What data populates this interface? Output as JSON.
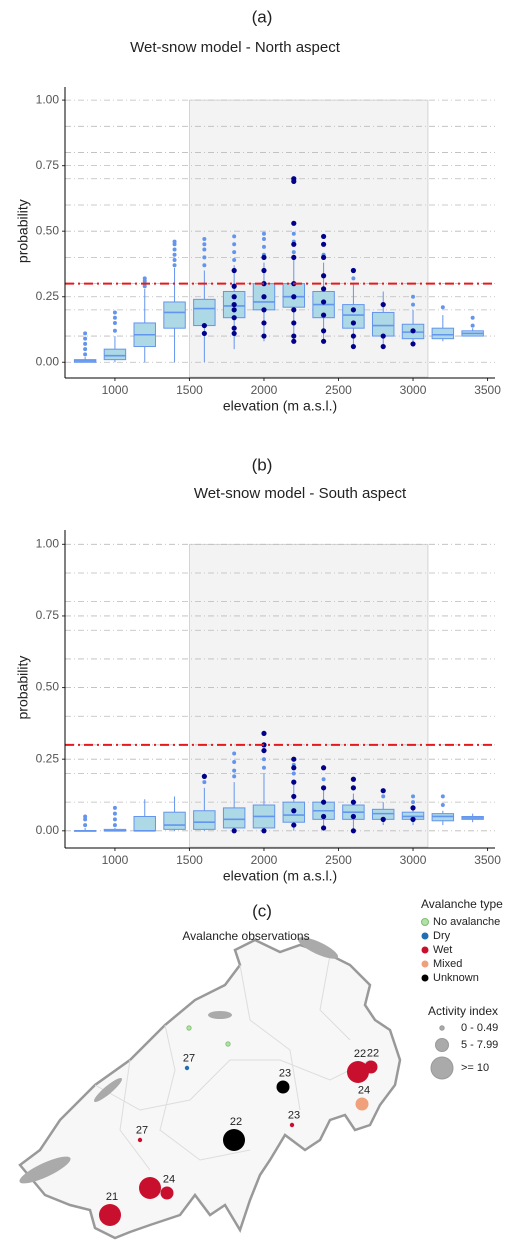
{
  "chart_data": [
    {
      "type": "boxplot",
      "panel_label": "(a)",
      "title": "Wet-snow model - North aspect",
      "x_label": "elevation (m a.s.l.)",
      "y_label": "probability",
      "xlim": [
        665,
        3550
      ],
      "ylim": [
        -0.06,
        1.05
      ],
      "xticks": [
        1000,
        1500,
        2000,
        2500,
        3000,
        3500
      ],
      "yticks": [
        {
          "value": 0,
          "label": "0.00"
        },
        {
          "value": 0.25,
          "label": "0.25"
        },
        {
          "value": 0.5,
          "label": "0.50"
        },
        {
          "value": 0.75,
          "label": "0.75"
        },
        {
          "value": 1,
          "label": "1.00"
        }
      ],
      "minor_yticks": [
        0.1,
        0.2,
        0.3,
        0.4,
        0.6,
        0.7,
        0.8,
        0.9
      ],
      "grid": true,
      "shade": [
        1500,
        3100
      ],
      "threshold": 0.3,
      "threshold_color": "#e41a1c",
      "box_color": "#add8e6",
      "line_color": "#6495ed",
      "observation_color": "#00008b",
      "boxes": [
        {
          "x": 800,
          "whisker_low": 0,
          "q1": 0,
          "median": 0.005,
          "q3": 0.01,
          "whisker_high": 0.02,
          "outliers": [
            0.03,
            0.05,
            0.07,
            0.09,
            0.11
          ],
          "observations": []
        },
        {
          "x": 1000,
          "whisker_low": 0,
          "q1": 0.01,
          "median": 0.025,
          "q3": 0.05,
          "whisker_high": 0.1,
          "outliers": [
            0.12,
            0.15,
            0.17,
            0.19
          ],
          "observations": []
        },
        {
          "x": 1200,
          "whisker_low": 0,
          "q1": 0.06,
          "median": 0.105,
          "q3": 0.15,
          "whisker_high": 0.28,
          "outliers": [
            0.29,
            0.3,
            0.31,
            0.32
          ],
          "observations": []
        },
        {
          "x": 1400,
          "whisker_low": 0,
          "q1": 0.13,
          "median": 0.19,
          "q3": 0.23,
          "whisker_high": 0.36,
          "outliers": [
            0.37,
            0.39,
            0.41,
            0.43,
            0.45,
            0.46
          ],
          "observations": []
        },
        {
          "x": 1600,
          "whisker_low": 0,
          "q1": 0.14,
          "median": 0.205,
          "q3": 0.24,
          "whisker_high": 0.35,
          "outliers": [
            0.37,
            0.4,
            0.43,
            0.45,
            0.47
          ],
          "observations": [
            0.11,
            0.14
          ]
        },
        {
          "x": 1800,
          "whisker_low": 0.05,
          "q1": 0.17,
          "median": 0.215,
          "q3": 0.27,
          "whisker_high": 0.37,
          "outliers": [
            0.39,
            0.42,
            0.45,
            0.48
          ],
          "observations": [
            0.11,
            0.13,
            0.17,
            0.2,
            0.22,
            0.25,
            0.29,
            0.35
          ]
        },
        {
          "x": 2000,
          "whisker_low": 0.08,
          "q1": 0.2,
          "median": 0.23,
          "q3": 0.3,
          "whisker_high": 0.38,
          "outliers": [
            0.41,
            0.44,
            0.47,
            0.49
          ],
          "observations": [
            0.1,
            0.15,
            0.2,
            0.25,
            0.3,
            0.35,
            0.4
          ]
        },
        {
          "x": 2200,
          "whisker_low": 0.08,
          "q1": 0.21,
          "median": 0.25,
          "q3": 0.3,
          "whisker_high": 0.4,
          "outliers": [
            0.42,
            0.46,
            0.49,
            0.53,
            0.69,
            0.7
          ],
          "observations": [
            0.08,
            0.1,
            0.15,
            0.2,
            0.25,
            0.3,
            0.4,
            0.45,
            0.53,
            0.69,
            0.7
          ]
        },
        {
          "x": 2400,
          "whisker_low": 0.08,
          "q1": 0.17,
          "median": 0.22,
          "q3": 0.27,
          "whisker_high": 0.38,
          "outliers": [
            0.41,
            0.45,
            0.48
          ],
          "observations": [
            0.08,
            0.12,
            0.18,
            0.23,
            0.28,
            0.33,
            0.4,
            0.45,
            0.48
          ]
        },
        {
          "x": 2600,
          "whisker_low": 0.05,
          "q1": 0.13,
          "median": 0.18,
          "q3": 0.22,
          "whisker_high": 0.3,
          "outliers": [
            0.32,
            0.35
          ],
          "observations": [
            0.06,
            0.1,
            0.15,
            0.2,
            0.35
          ]
        },
        {
          "x": 2800,
          "whisker_low": 0.05,
          "q1": 0.1,
          "median": 0.14,
          "q3": 0.19,
          "whisker_high": 0.27,
          "outliers": [],
          "observations": [
            0.06,
            0.1,
            0.22
          ]
        },
        {
          "x": 3000,
          "whisker_low": 0.06,
          "q1": 0.09,
          "median": 0.115,
          "q3": 0.145,
          "whisker_high": 0.2,
          "outliers": [
            0.22,
            0.25
          ],
          "observations": [
            0.07,
            0.12
          ]
        },
        {
          "x": 3200,
          "whisker_low": 0.08,
          "q1": 0.09,
          "median": 0.105,
          "q3": 0.13,
          "whisker_high": 0.18,
          "outliers": [
            0.21
          ],
          "observations": []
        },
        {
          "x": 3400,
          "whisker_low": 0.1,
          "q1": 0.1,
          "median": 0.11,
          "q3": 0.12,
          "whisker_high": 0.13,
          "outliers": [
            0.14,
            0.17
          ],
          "observations": []
        }
      ]
    },
    {
      "type": "boxplot",
      "panel_label": "(b)",
      "title": "Wet-snow model - South aspect",
      "x_label": "elevation (m a.s.l.)",
      "y_label": "probability",
      "xlim": [
        665,
        3550
      ],
      "ylim": [
        -0.06,
        1.05
      ],
      "xticks": [
        1000,
        1500,
        2000,
        2500,
        3000,
        3500
      ],
      "yticks": [
        {
          "value": 0,
          "label": "0.00"
        },
        {
          "value": 0.25,
          "label": "0.25"
        },
        {
          "value": 0.5,
          "label": "0.50"
        },
        {
          "value": 0.75,
          "label": "0.75"
        },
        {
          "value": 1,
          "label": "1.00"
        }
      ],
      "minor_yticks": [
        0.1,
        0.2,
        0.3,
        0.4,
        0.6,
        0.7,
        0.8,
        0.9
      ],
      "grid": true,
      "shade": [
        1500,
        3100
      ],
      "threshold": 0.3,
      "threshold_color": "#e41a1c",
      "box_color": "#add8e6",
      "line_color": "#6495ed",
      "observation_color": "#00008b",
      "boxes": [
        {
          "x": 800,
          "whisker_low": 0,
          "q1": 0,
          "median": 0,
          "q3": 0,
          "whisker_high": 0.01,
          "outliers": [
            0.02,
            0.04,
            0.05
          ],
          "observations": []
        },
        {
          "x": 1000,
          "whisker_low": 0,
          "q1": 0,
          "median": 0,
          "q3": 0.005,
          "whisker_high": 0.01,
          "outliers": [
            0.02,
            0.04,
            0.06,
            0.08
          ],
          "observations": []
        },
        {
          "x": 1200,
          "whisker_low": 0,
          "q1": 0,
          "median": 0,
          "q3": 0.05,
          "whisker_high": 0.11,
          "outliers": [],
          "observations": []
        },
        {
          "x": 1400,
          "whisker_low": 0,
          "q1": 0.005,
          "median": 0.02,
          "q3": 0.065,
          "whisker_high": 0.12,
          "outliers": [],
          "observations": []
        },
        {
          "x": 1600,
          "whisker_low": 0,
          "q1": 0.005,
          "median": 0.03,
          "q3": 0.07,
          "whisker_high": 0.15,
          "outliers": [
            0.17,
            0.19
          ],
          "observations": [
            0.19
          ]
        },
        {
          "x": 1800,
          "whisker_low": 0,
          "q1": 0.01,
          "median": 0.04,
          "q3": 0.08,
          "whisker_high": 0.17,
          "outliers": [
            0.19,
            0.21,
            0.24,
            0.27
          ],
          "observations": [
            0
          ]
        },
        {
          "x": 2000,
          "whisker_low": 0,
          "q1": 0.01,
          "median": 0.05,
          "q3": 0.09,
          "whisker_high": 0.2,
          "outliers": [
            0.22,
            0.25,
            0.28,
            0.3,
            0.34
          ],
          "observations": [
            0,
            0.28,
            0.3,
            0.34
          ]
        },
        {
          "x": 2200,
          "whisker_low": 0,
          "q1": 0.03,
          "median": 0.055,
          "q3": 0.1,
          "whisker_high": 0.17,
          "outliers": [
            0.2,
            0.23,
            0.25
          ],
          "observations": [
            0.02,
            0.07,
            0.12,
            0.17,
            0.22,
            0.25
          ]
        },
        {
          "x": 2400,
          "whisker_low": 0,
          "q1": 0.04,
          "median": 0.07,
          "q3": 0.1,
          "whisker_high": 0.15,
          "outliers": [
            0.18,
            0.22
          ],
          "observations": [
            0.01,
            0.05,
            0.1,
            0.15,
            0.22
          ]
        },
        {
          "x": 2600,
          "whisker_low": 0,
          "q1": 0.04,
          "median": 0.065,
          "q3": 0.09,
          "whisker_high": 0.13,
          "outliers": [
            0.15,
            0.18
          ],
          "observations": [
            0,
            0.05,
            0.1,
            0.15,
            0.18
          ]
        },
        {
          "x": 2800,
          "whisker_low": 0.02,
          "q1": 0.04,
          "median": 0.06,
          "q3": 0.075,
          "whisker_high": 0.1,
          "outliers": [
            0.12,
            0.14
          ],
          "observations": [
            0.04,
            0.14
          ]
        },
        {
          "x": 3000,
          "whisker_low": 0.02,
          "q1": 0.04,
          "median": 0.05,
          "q3": 0.065,
          "whisker_high": 0.09,
          "outliers": [
            0.1,
            0.12
          ],
          "observations": [
            0.04,
            0.08
          ]
        },
        {
          "x": 3200,
          "whisker_low": 0.02,
          "q1": 0.035,
          "median": 0.05,
          "q3": 0.06,
          "whisker_high": 0.07,
          "outliers": [
            0.09,
            0.12
          ],
          "observations": []
        },
        {
          "x": 3400,
          "whisker_low": 0.03,
          "q1": 0.04,
          "median": 0.045,
          "q3": 0.05,
          "whisker_high": 0.06,
          "outliers": [],
          "observations": []
        }
      ]
    }
  ],
  "map": {
    "panel_label": "(c)",
    "title": "Avalanche observations",
    "type_legend_title": "Avalanche type",
    "types": [
      {
        "name": "No avalanche",
        "color": "#b2e0a8"
      },
      {
        "name": "Dry",
        "color": "#1f6fb4"
      },
      {
        "name": "Wet",
        "color": "#c8102e"
      },
      {
        "name": "Mixed",
        "color": "#f0a07a"
      },
      {
        "name": "Unknown",
        "color": "#000000"
      }
    ],
    "activity_legend_title": "Activity index",
    "activity_classes": [
      "0 - 0.49",
      "5 - 7.99",
      ">= 10"
    ],
    "observations": [
      {
        "label": "21",
        "type": "Wet",
        "activity": ">= 10"
      },
      {
        "label": null,
        "type": "Wet",
        "activity": ">= 10"
      },
      {
        "label": "24",
        "type": "Wet",
        "activity": "5 - 7.99"
      },
      {
        "label": "27",
        "type": "Wet",
        "activity": "0 - 0.49"
      },
      {
        "label": "27",
        "type": "Dry",
        "activity": "0 - 0.49"
      },
      {
        "label": null,
        "type": "No avalanche",
        "activity": "0 - 0.49"
      },
      {
        "label": null,
        "type": "No avalanche",
        "activity": "0 - 0.49"
      },
      {
        "label": "22",
        "type": "Unknown",
        "activity": ">= 10"
      },
      {
        "label": "23",
        "type": "Unknown",
        "activity": "5 - 7.99"
      },
      {
        "label": "23",
        "type": "Wet",
        "activity": "0 - 0.49"
      },
      {
        "label": "22",
        "type": "Wet",
        "activity": ">= 10"
      },
      {
        "label": "22",
        "type": "Wet",
        "activity": "5 - 7.99"
      },
      {
        "label": "24",
        "type": "Mixed",
        "activity": "5 - 7.99"
      }
    ]
  }
}
